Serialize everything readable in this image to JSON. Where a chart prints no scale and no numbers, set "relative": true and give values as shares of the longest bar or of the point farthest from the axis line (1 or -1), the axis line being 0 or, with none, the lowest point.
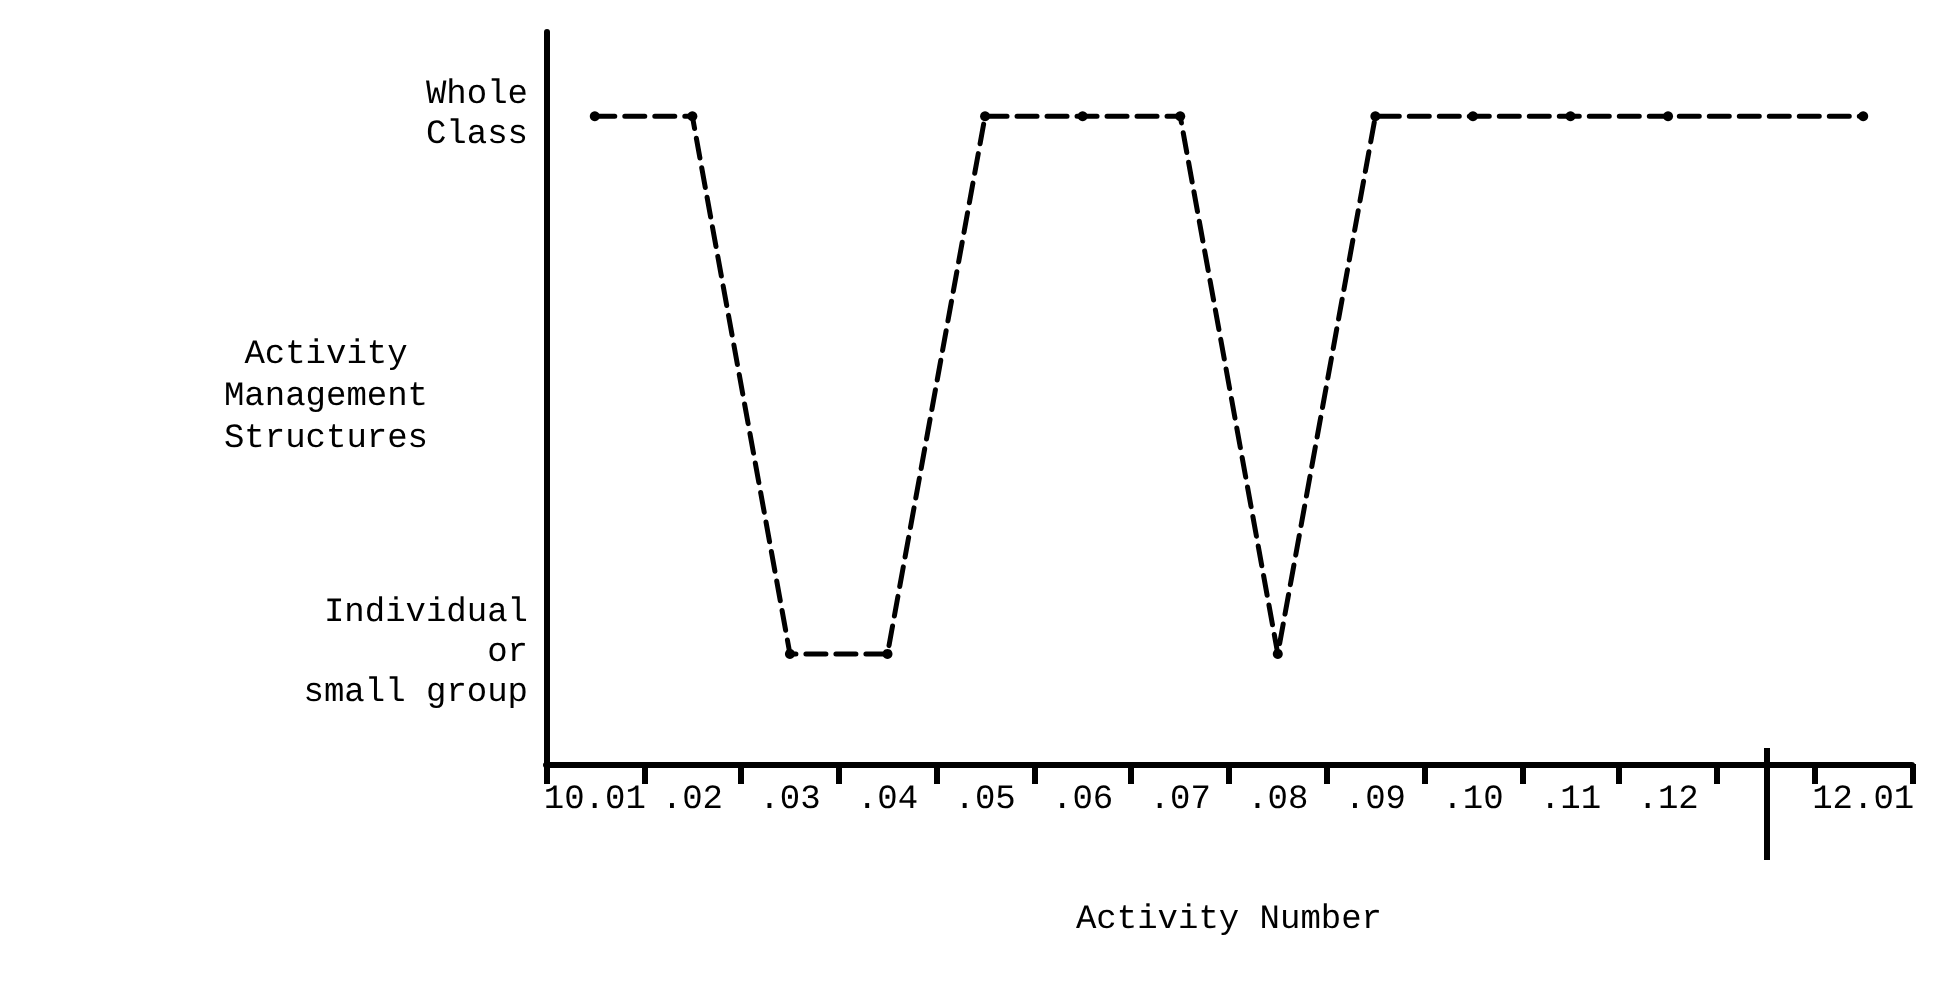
{
  "chart_data": {
    "type": "line",
    "xlabel": "Activity Number",
    "ylabel": "Activity\nManagement\nStructures",
    "categories": [
      "10.01",
      ".02",
      ".03",
      ".04",
      ".05",
      ".06",
      ".07",
      ".08",
      ".09",
      ".10",
      ".11",
      ".12",
      null,
      "12.01"
    ],
    "series": [
      {
        "color": "#000000",
        "values": [
          1,
          1,
          0.17,
          0.17,
          1,
          1,
          1,
          0.17,
          1,
          1,
          1,
          1,
          null,
          1
        ]
      }
    ],
    "relative": true,
    "annotations": [
      "Whole\nClass",
      "Individual\nor\nsmall group"
    ],
    "grid": false,
    "marker": "circle",
    "line_style": "dashed"
  }
}
